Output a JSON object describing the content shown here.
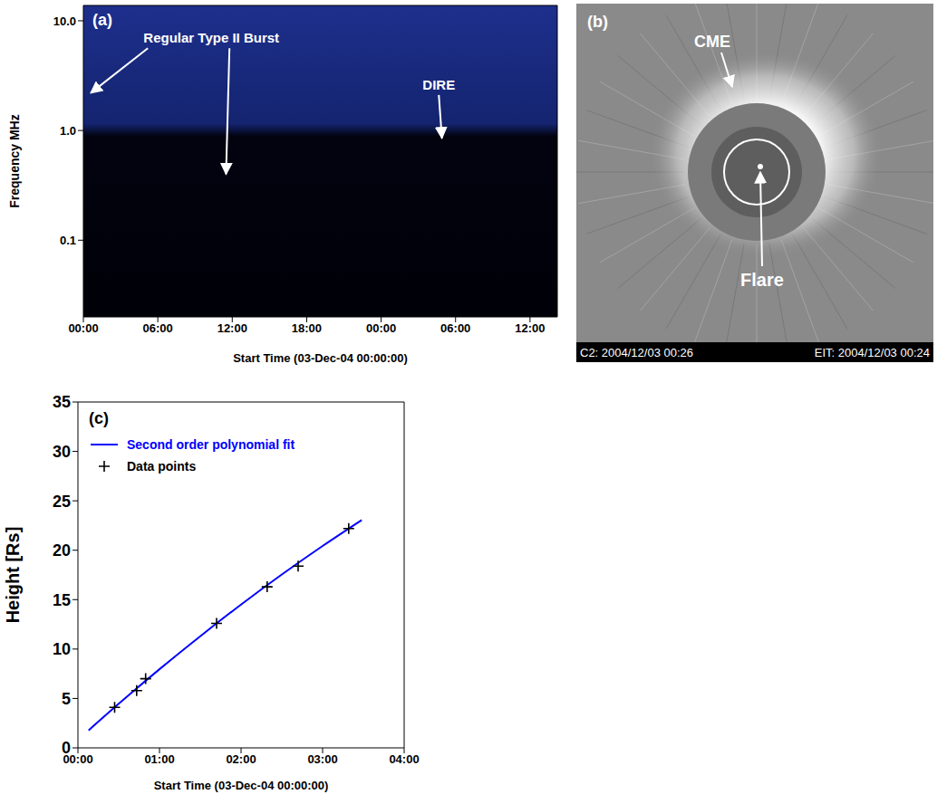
{
  "chart_data": [
    {
      "type": "spectrogram",
      "panel": "(a)",
      "x_label": "Start Time (03-Dec-04 00:00:00)",
      "y_label": "Frequency MHz",
      "log": "y",
      "xlim": [
        0,
        38.2
      ],
      "xticks": [
        {
          "value": 0,
          "label": "00:00"
        },
        {
          "value": 6,
          "label": "06:00"
        },
        {
          "value": 12,
          "label": "12:00"
        },
        {
          "value": 18,
          "label": "18:00"
        },
        {
          "value": 24,
          "label": "00:00"
        },
        {
          "value": 30,
          "label": "06:00"
        },
        {
          "value": 36,
          "label": "12:00"
        }
      ],
      "ylim": [
        0.02,
        13.8
      ],
      "yticks": [
        0.1,
        {
          "value": 1,
          "label": "1.0"
        },
        {
          "value": 10,
          "label": "10.0"
        }
      ],
      "annotations": [
        {
          "text": "Regular Type II Burst",
          "targets": [
            [
              0.6,
              2.2
            ],
            [
              11.5,
              0.4
            ]
          ]
        },
        {
          "text": "DIRE",
          "targets": [
            [
              28.9,
              0.85
            ]
          ]
        }
      ]
    },
    {
      "type": "image",
      "panel": "(b)",
      "annotations": [
        {
          "text": "CME"
        },
        {
          "text": "Flare"
        }
      ],
      "footer": [
        "C2: 2004/12/03 00:26",
        "EIT: 2004/12/03 00:24"
      ]
    },
    {
      "type": "line",
      "panel": "(c)",
      "x_label": "Start Time (03-Dec-04 00:00:00)",
      "y_label": "Height [Rs]",
      "xlim": [
        0,
        4
      ],
      "xticks": [
        {
          "value": 0,
          "label": "00:00"
        },
        {
          "value": 1,
          "label": "01:00"
        },
        {
          "value": 2,
          "label": "02:00"
        },
        {
          "value": 3,
          "label": "03:00"
        },
        {
          "value": 4,
          "label": "04:00"
        }
      ],
      "ylim": [
        0,
        35
      ],
      "yticks": [
        0,
        5,
        10,
        15,
        20,
        25,
        30,
        35
      ],
      "legend": "upper left",
      "series": [
        {
          "name": "Second order polynomial fit",
          "type": "line",
          "color": "#0000ff",
          "x": [
            0.13,
            0.5,
            1.0,
            1.5,
            2.0,
            2.5,
            3.0,
            3.48
          ],
          "values": [
            1.77,
            4.46,
            7.96,
            11.3,
            14.5,
            17.54,
            20.43,
            23.06
          ]
        },
        {
          "name": "Data points",
          "type": "scatter",
          "marker": "plus",
          "color": "#000000",
          "x": [
            0.45,
            0.72,
            0.83,
            1.7,
            2.32,
            2.7,
            3.32
          ],
          "values": [
            4.1,
            5.8,
            7.0,
            12.6,
            16.3,
            18.4,
            22.2
          ]
        }
      ]
    }
  ]
}
